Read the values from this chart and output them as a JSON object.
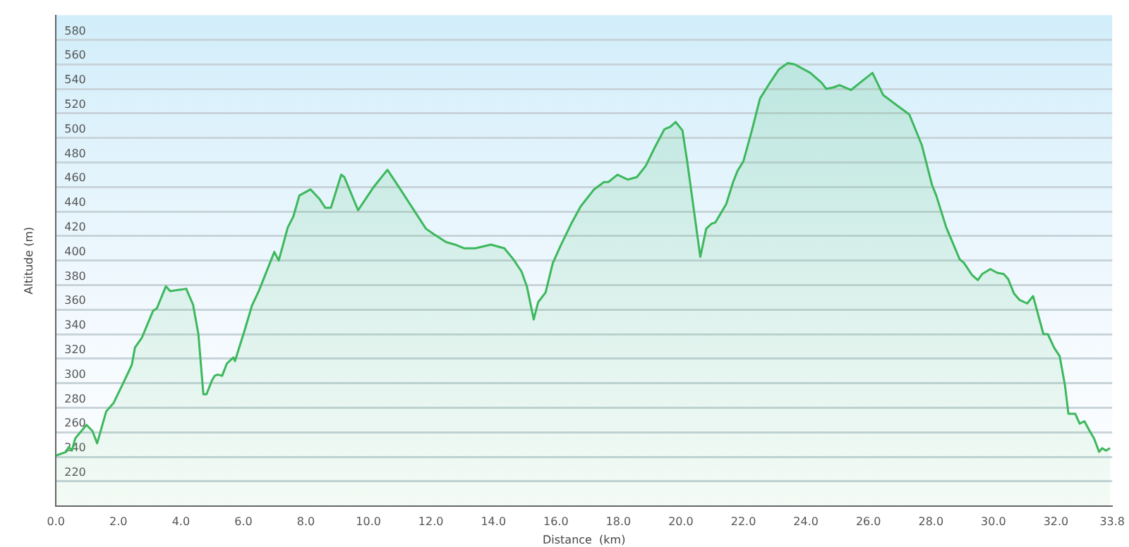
{
  "chart_data": {
    "type": "area",
    "xlabel": "Distance  (km)",
    "ylabel": "Altitude (m)",
    "color": "#3cb85c",
    "grid": "y",
    "marker": "none",
    "line_style": "solid",
    "x": [
      0,
      0.33,
      0.41,
      0.51,
      0.62,
      0.98,
      1.17,
      1.32,
      1.61,
      1.85,
      2.21,
      2.43,
      2.53,
      2.75,
      3.11,
      3.23,
      3.52,
      3.66,
      4.17,
      4.39,
      4.56,
      4.72,
      4.82,
      4.99,
      5.08,
      5.18,
      5.32,
      5.47,
      5.68,
      5.73,
      6.05,
      6.27,
      6.49,
      6.99,
      7.13,
      7.42,
      7.6,
      7.79,
      8.15,
      8.44,
      8.62,
      8.8,
      9.13,
      9.23,
      9.67,
      10.17,
      10.61,
      11.05,
      11.84,
      12.06,
      12.49,
      12.77,
      13.06,
      13.42,
      13.92,
      14.35,
      14.64,
      14.9,
      15.07,
      15.29,
      15.43,
      15.67,
      15.9,
      16.15,
      16.51,
      16.79,
      17.22,
      17.54,
      17.68,
      17.97,
      18.3,
      18.59,
      18.87,
      19.16,
      19.47,
      19.66,
      19.83,
      20.05,
      20.2,
      20.62,
      20.81,
      20.98,
      21.1,
      21.45,
      21.67,
      21.81,
      22,
      22.27,
      22.53,
      22.85,
      23.14,
      23.42,
      23.64,
      24.14,
      24.5,
      24.65,
      24.86,
      25.08,
      25.44,
      25.73,
      26.13,
      26.47,
      27.31,
      27.71,
      28.03,
      28.17,
      28.49,
      28.92,
      29.06,
      29.32,
      29.5,
      29.64,
      29.9,
      30.12,
      30.33,
      30.47,
      30.66,
      30.83,
      31.08,
      31.27,
      31.6,
      31.74,
      31.94,
      32.12,
      32.29,
      32.4,
      32.5,
      32.62,
      32.76,
      32.91,
      33.08,
      33.22,
      33.38,
      33.48,
      33.6,
      33.73
    ],
    "values": [
      241,
      244,
      248,
      245,
      255,
      266,
      261,
      251,
      277,
      284,
      303,
      315,
      329,
      337,
      359,
      361,
      379,
      375,
      377,
      364,
      340,
      291,
      291,
      302,
      306,
      307,
      306,
      316,
      321,
      318,
      344,
      363,
      375,
      407,
      400,
      427,
      436,
      453,
      458,
      450,
      443,
      443,
      470,
      468,
      441,
      460,
      474,
      457,
      426,
      422,
      415,
      413,
      410,
      410,
      413,
      410,
      401,
      391,
      379,
      352,
      366,
      374,
      398,
      412,
      431,
      444,
      458,
      464,
      464,
      470,
      466,
      468,
      477,
      492,
      507,
      509,
      513,
      506,
      481,
      403,
      426,
      430,
      431,
      446,
      464,
      473,
      481,
      506,
      532,
      545,
      556,
      561,
      560,
      553,
      545,
      540,
      541,
      543,
      539,
      545,
      553,
      535,
      519,
      494,
      462,
      453,
      427,
      401,
      398,
      388,
      384,
      389,
      393,
      390,
      389,
      385,
      373,
      368,
      365,
      371,
      340,
      340,
      329,
      322,
      298,
      275,
      275,
      275,
      267,
      269,
      261,
      255,
      244,
      247,
      245,
      247
    ],
    "xlim": [
      0,
      33.8
    ],
    "ylim": [
      200,
      600
    ],
    "xticks": [
      {
        "value": 0,
        "label": "0.0"
      },
      {
        "value": 2,
        "label": "2.0"
      },
      {
        "value": 4,
        "label": "4.0"
      },
      {
        "value": 6,
        "label": "6.0"
      },
      {
        "value": 8,
        "label": "8.0"
      },
      {
        "value": 10,
        "label": "10.0"
      },
      {
        "value": 12,
        "label": "12.0"
      },
      {
        "value": 14,
        "label": "14.0"
      },
      {
        "value": 16,
        "label": "16.0"
      },
      {
        "value": 18,
        "label": "18.0"
      },
      {
        "value": 20,
        "label": "20.0"
      },
      {
        "value": 22,
        "label": "22.0"
      },
      {
        "value": 24,
        "label": "24.0"
      },
      {
        "value": 26,
        "label": "26.0"
      },
      {
        "value": 28,
        "label": "28.0"
      },
      {
        "value": 30,
        "label": "30.0"
      },
      {
        "value": 32,
        "label": "32.0"
      },
      33.8
    ],
    "yticks": [
      220,
      240,
      260,
      280,
      300,
      320,
      340,
      360,
      380,
      400,
      420,
      440,
      460,
      480,
      500,
      520,
      540,
      560,
      580
    ]
  }
}
